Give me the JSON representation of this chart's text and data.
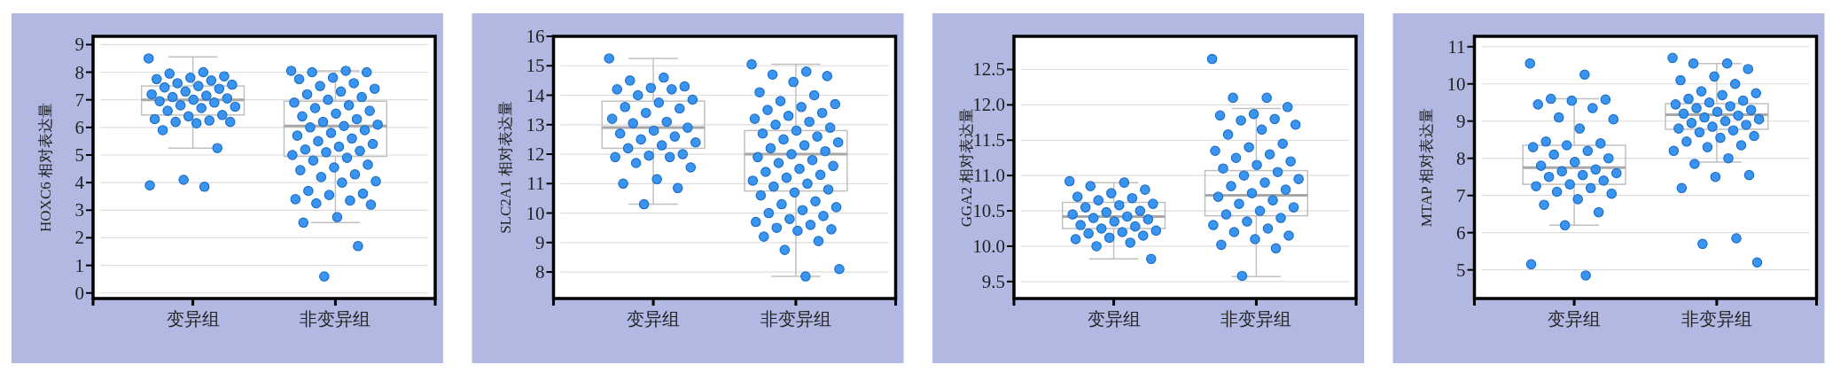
{
  "chart_data": [
    {
      "type": "box",
      "ylabel": "HOXC6 相对表达量",
      "categories": [
        "变异组",
        "非变异组"
      ],
      "ylim": [
        -0.2,
        9.3
      ],
      "yticks": [
        0,
        1,
        2,
        3,
        4,
        5,
        6,
        7,
        8,
        9
      ],
      "grid": "y",
      "boxes": [
        {
          "low": 5.25,
          "q1": 6.45,
          "median": 7.0,
          "q3": 7.5,
          "high": 8.55
        },
        {
          "low": 2.55,
          "q1": 4.95,
          "median": 6.05,
          "q3": 6.95,
          "high": 8.05
        }
      ],
      "series": [
        {
          "type": "scatter",
          "color": "#2e8ff0",
          "x": [
            "变异组",
            "变异组",
            "变异组",
            "变异组",
            "变异组",
            "变异组",
            "变异组",
            "变异组",
            "变异组",
            "变异组",
            "变异组",
            "变异组",
            "变异组",
            "变异组",
            "变异组",
            "变异组",
            "变异组",
            "变异组",
            "变异组",
            "变异组",
            "变异组",
            "变异组",
            "变异组",
            "变异组",
            "变异组",
            "变异组",
            "变异组",
            "变异组",
            "变异组",
            "变异组",
            "变异组",
            "变异组",
            "变异组",
            "变异组",
            "变异组",
            "变异组"
          ],
          "values": [
            8.5,
            8.0,
            7.95,
            7.85,
            7.8,
            7.75,
            7.7,
            7.6,
            7.55,
            7.5,
            7.45,
            7.4,
            7.3,
            7.2,
            7.15,
            7.1,
            7.05,
            7.0,
            6.95,
            6.9,
            6.8,
            6.75,
            6.7,
            6.6,
            6.45,
            6.4,
            6.3,
            6.25,
            6.2,
            6.2,
            6.15,
            5.9,
            5.25,
            4.1,
            3.9,
            3.85
          ]
        },
        {
          "type": "scatter",
          "color": "#2e8ff0",
          "x": [
            "非变异组",
            "非变异组",
            "非变异组",
            "非变异组",
            "非变异组",
            "非变异组",
            "非变异组",
            "非变异组",
            "非变异组",
            "非变异组",
            "非变异组",
            "非变异组",
            "非变异组",
            "非变异组",
            "非变异组",
            "非变异组",
            "非变异组",
            "非变异组",
            "非变异组",
            "非变异组",
            "非变异组",
            "非变异组",
            "非变异组",
            "非变异组",
            "非变异组",
            "非变异组",
            "非变异组",
            "非变异组",
            "非变异组",
            "非变异组",
            "非变异组",
            "非变异组",
            "非变异组",
            "非变异组",
            "非变异组",
            "非变异组",
            "非变异组",
            "非变异组",
            "非变异组",
            "非变异组",
            "非变异组",
            "非变异组",
            "非变异组",
            "非变异组",
            "非变异组",
            "非变异组",
            "非变异组",
            "非变异组",
            "非变异组",
            "非变异组",
            "非变异组",
            "非变异组",
            "非变异组",
            "非变异组",
            "非变异组"
          ],
          "values": [
            8.05,
            8.05,
            8.0,
            8.0,
            7.8,
            7.75,
            7.6,
            7.5,
            7.4,
            7.3,
            7.2,
            7.1,
            7.0,
            6.9,
            6.8,
            6.7,
            6.6,
            6.5,
            6.4,
            6.3,
            6.2,
            6.1,
            6.05,
            6.0,
            5.9,
            5.8,
            5.7,
            5.6,
            5.5,
            5.4,
            5.3,
            5.2,
            5.15,
            5.1,
            5.0,
            4.9,
            4.8,
            4.65,
            4.55,
            4.45,
            4.3,
            4.2,
            4.05,
            4.0,
            3.7,
            3.6,
            3.55,
            3.4,
            3.35,
            3.25,
            3.2,
            2.75,
            2.55,
            1.7,
            0.6
          ]
        }
      ]
    },
    {
      "type": "box",
      "ylabel": "SLC2A1 相对表达量",
      "categories": [
        "变异组",
        "非变异组"
      ],
      "ylim": [
        7.1,
        16
      ],
      "yticks": [
        8,
        9,
        10,
        11,
        12,
        13,
        14,
        15,
        16
      ],
      "grid": "y",
      "boxes": [
        {
          "low": 10.3,
          "q1": 12.2,
          "median": 12.9,
          "q3": 13.8,
          "high": 15.25
        },
        {
          "low": 7.85,
          "q1": 10.75,
          "median": 12.0,
          "q3": 12.8,
          "high": 15.05
        }
      ],
      "series": [
        {
          "type": "scatter",
          "color": "#2e8ff0",
          "x": [
            "变异组",
            "变异组",
            "变异组",
            "变异组",
            "变异组",
            "变异组",
            "变异组",
            "变异组",
            "变异组",
            "变异组",
            "变异组",
            "变异组",
            "变异组",
            "变异组",
            "变异组",
            "变异组",
            "变异组",
            "变异组",
            "变异组",
            "变异组",
            "变异组",
            "变异组",
            "变异组",
            "变异组",
            "变异组",
            "变异组",
            "变异组",
            "变异组",
            "变异组",
            "变异组",
            "变异组",
            "变异组",
            "变异组",
            "变异组"
          ],
          "values": [
            15.25,
            14.6,
            14.5,
            14.3,
            14.25,
            14.2,
            14.2,
            14.0,
            13.85,
            13.75,
            13.6,
            13.55,
            13.4,
            13.2,
            13.1,
            13.05,
            12.9,
            12.8,
            12.7,
            12.6,
            12.5,
            12.4,
            12.3,
            12.2,
            12.0,
            11.95,
            11.9,
            11.9,
            11.7,
            11.55,
            11.15,
            11.0,
            10.85,
            10.3
          ]
        },
        {
          "type": "scatter",
          "color": "#2e8ff0",
          "x": [
            "非变异组",
            "非变异组",
            "非变异组",
            "非变异组",
            "非变异组",
            "非变异组",
            "非变异组",
            "非变异组",
            "非变异组",
            "非变异组",
            "非变异组",
            "非变异组",
            "非变异组",
            "非变异组",
            "非变异组",
            "非变异组",
            "非变异组",
            "非变异组",
            "非变异组",
            "非变异组",
            "非变异组",
            "非变异组",
            "非变异组",
            "非变异组",
            "非变异组",
            "非变异组",
            "非变异组",
            "非变异组",
            "非变异组",
            "非变异组",
            "非变异组",
            "非变异组",
            "非变异组",
            "非变异组",
            "非变异组",
            "非变异组",
            "非变异组",
            "非变异组",
            "非变异组",
            "非变异组",
            "非变异组",
            "非变异组",
            "非变异组",
            "非变异组",
            "非变异组",
            "非变异组",
            "非变异组",
            "非变异组",
            "非变异组",
            "非变异组",
            "非变异组",
            "非变异组",
            "非变异组",
            "非变异组",
            "非变异组",
            "非变异组",
            "非变异组"
          ],
          "values": [
            15.05,
            14.8,
            14.7,
            14.65,
            14.45,
            14.1,
            14.0,
            13.8,
            13.7,
            13.6,
            13.5,
            13.4,
            13.3,
            13.2,
            13.1,
            13.0,
            12.9,
            12.8,
            12.7,
            12.6,
            12.5,
            12.4,
            12.3,
            12.2,
            12.1,
            12.0,
            11.9,
            11.8,
            11.7,
            11.6,
            11.5,
            11.4,
            11.3,
            11.2,
            11.1,
            11.0,
            10.9,
            10.8,
            10.7,
            10.6,
            10.4,
            10.3,
            10.2,
            10.1,
            10.0,
            9.9,
            9.8,
            9.7,
            9.6,
            9.5,
            9.45,
            9.4,
            9.2,
            9.05,
            8.75,
            8.1,
            7.85
          ]
        }
      ]
    },
    {
      "type": "box",
      "ylabel": "GGA2 相对表达量",
      "categories": [
        "变异组",
        "非变异组"
      ],
      "ylim": [
        9.26,
        12.97
      ],
      "yticks": [
        9.5,
        {
          "value": 10,
          "label": "10.0"
        },
        10.5,
        {
          "value": 11,
          "label": "11.0"
        },
        11.5,
        {
          "value": 12,
          "label": "12.0"
        },
        12.5
      ],
      "grid": "y",
      "boxes": [
        {
          "low": 9.82,
          "q1": 10.25,
          "median": 10.42,
          "q3": 10.62,
          "high": 10.9
        },
        {
          "low": 9.57,
          "q1": 10.43,
          "median": 10.72,
          "q3": 11.07,
          "high": 11.95
        }
      ],
      "series": [
        {
          "type": "scatter",
          "color": "#2e8ff0",
          "x": [
            "变异组",
            "变异组",
            "变异组",
            "变异组",
            "变异组",
            "变异组",
            "变异组",
            "变异组",
            "变异组",
            "变异组",
            "变异组",
            "变异组",
            "变异组",
            "变异组",
            "变异组",
            "变异组",
            "变异组",
            "变异组",
            "变异组",
            "变异组",
            "变异组",
            "变异组",
            "变异组",
            "变异组",
            "变异组",
            "变异组",
            "变异组",
            "变异组",
            "变异组",
            "变异组"
          ],
          "values": [
            10.92,
            10.9,
            10.85,
            10.8,
            10.75,
            10.7,
            10.68,
            10.65,
            10.6,
            10.58,
            10.55,
            10.5,
            10.48,
            10.45,
            10.42,
            10.4,
            10.38,
            10.35,
            10.3,
            10.28,
            10.25,
            10.22,
            10.2,
            10.18,
            10.15,
            10.12,
            10.1,
            10.05,
            10.0,
            9.82
          ]
        },
        {
          "type": "scatter",
          "color": "#2e8ff0",
          "x": [
            "非变异组",
            "非变异组",
            "非变异组",
            "非变异组",
            "非变异组",
            "非变异组",
            "非变异组",
            "非变异组",
            "非变异组",
            "非变异组",
            "非变异组",
            "非变异组",
            "非变异组",
            "非变异组",
            "非变异组",
            "非变异组",
            "非变异组",
            "非变异组",
            "非变异组",
            "非变异组",
            "非变异组",
            "非变异组",
            "非变异组",
            "非变异组",
            "非变异组",
            "非变异组",
            "非变异组",
            "非变异组",
            "非变异组",
            "非变异组",
            "非变异组",
            "非变异组",
            "非变异组",
            "非变异组",
            "非变异组",
            "非变异组",
            "非变异组",
            "非变异组",
            "非变异组",
            "非变异组",
            "非变异组",
            "非变异组"
          ],
          "values": [
            12.65,
            12.1,
            12.1,
            11.97,
            11.87,
            11.85,
            11.8,
            11.78,
            11.72,
            11.65,
            11.58,
            11.45,
            11.4,
            11.35,
            11.3,
            11.25,
            11.2,
            11.15,
            11.1,
            11.05,
            11.0,
            10.95,
            10.9,
            10.85,
            10.8,
            10.75,
            10.7,
            10.65,
            10.6,
            10.55,
            10.5,
            10.45,
            10.4,
            10.35,
            10.3,
            10.25,
            10.2,
            10.15,
            10.1,
            10.02,
            9.97,
            9.58
          ]
        }
      ]
    },
    {
      "type": "box",
      "ylabel": "MTAP 相对表达量",
      "categories": [
        "变异组",
        "非变异组"
      ],
      "ylim": [
        4.23,
        11.28
      ],
      "yticks": [
        5,
        6,
        7,
        8,
        9,
        10,
        11
      ],
      "grid": "y",
      "boxes": [
        {
          "low": 6.2,
          "q1": 7.3,
          "median": 7.75,
          "q3": 8.35,
          "high": 9.6
        },
        {
          "low": 7.9,
          "q1": 8.78,
          "median": 9.17,
          "q3": 9.47,
          "high": 10.55
        }
      ],
      "series": [
        {
          "type": "scatter",
          "color": "#2e8ff0",
          "x": [
            "变异组",
            "变异组",
            "变异组",
            "变异组",
            "变异组",
            "变异组",
            "变异组",
            "变异组",
            "变异组",
            "变异组",
            "变异组",
            "变异组",
            "变异组",
            "变异组",
            "变异组",
            "变异组",
            "变异组",
            "变异组",
            "变异组",
            "变异组",
            "变异组",
            "变异组",
            "变异组",
            "变异组",
            "变异组",
            "变异组",
            "变异组",
            "变异组",
            "变异组",
            "变异组",
            "变异组",
            "变异组",
            "变异组",
            "变异组",
            "变异组",
            "变异组"
          ],
          "values": [
            10.55,
            10.25,
            9.6,
            9.58,
            9.55,
            9.45,
            9.35,
            9.1,
            9.05,
            8.8,
            8.45,
            8.4,
            8.35,
            8.3,
            8.2,
            8.1,
            8.0,
            7.9,
            7.8,
            7.7,
            7.65,
            7.6,
            7.55,
            7.5,
            7.4,
            7.3,
            7.25,
            7.2,
            7.1,
            7.05,
            6.9,
            6.75,
            6.55,
            6.2,
            5.15,
            4.85
          ]
        },
        {
          "type": "scatter",
          "color": "#2e8ff0",
          "x": [
            "非变异组",
            "非变异组",
            "非变异组",
            "非变异组",
            "非变异组",
            "非变异组",
            "非变异组",
            "非变异组",
            "非变异组",
            "非变异组",
            "非变异组",
            "非变异组",
            "非变异组",
            "非变异组",
            "非变异组",
            "非变异组",
            "非变异组",
            "非变异组",
            "非变异组",
            "非变异组",
            "非变异组",
            "非变异组",
            "非变异组",
            "非变异组",
            "非变异组",
            "非变异组",
            "非变异组",
            "非变异组",
            "非变异组",
            "非变异组",
            "非变异组",
            "非变异组",
            "非变异组",
            "非变异组",
            "非变异组",
            "非变异组",
            "非变异组",
            "非变异组",
            "非变异组",
            "非变异组",
            "非变异组",
            "非变异组",
            "非变异组"
          ],
          "values": [
            10.7,
            10.55,
            10.55,
            10.4,
            10.2,
            10.1,
            10.0,
            9.8,
            9.75,
            9.7,
            9.6,
            9.55,
            9.5,
            9.45,
            9.4,
            9.35,
            9.3,
            9.25,
            9.2,
            9.15,
            9.1,
            9.05,
            9.0,
            8.95,
            8.9,
            8.85,
            8.8,
            8.75,
            8.7,
            8.6,
            8.55,
            8.45,
            8.35,
            8.3,
            8.2,
            8.0,
            7.85,
            7.55,
            7.5,
            7.2,
            5.85,
            5.7,
            5.2
          ]
        }
      ]
    }
  ]
}
